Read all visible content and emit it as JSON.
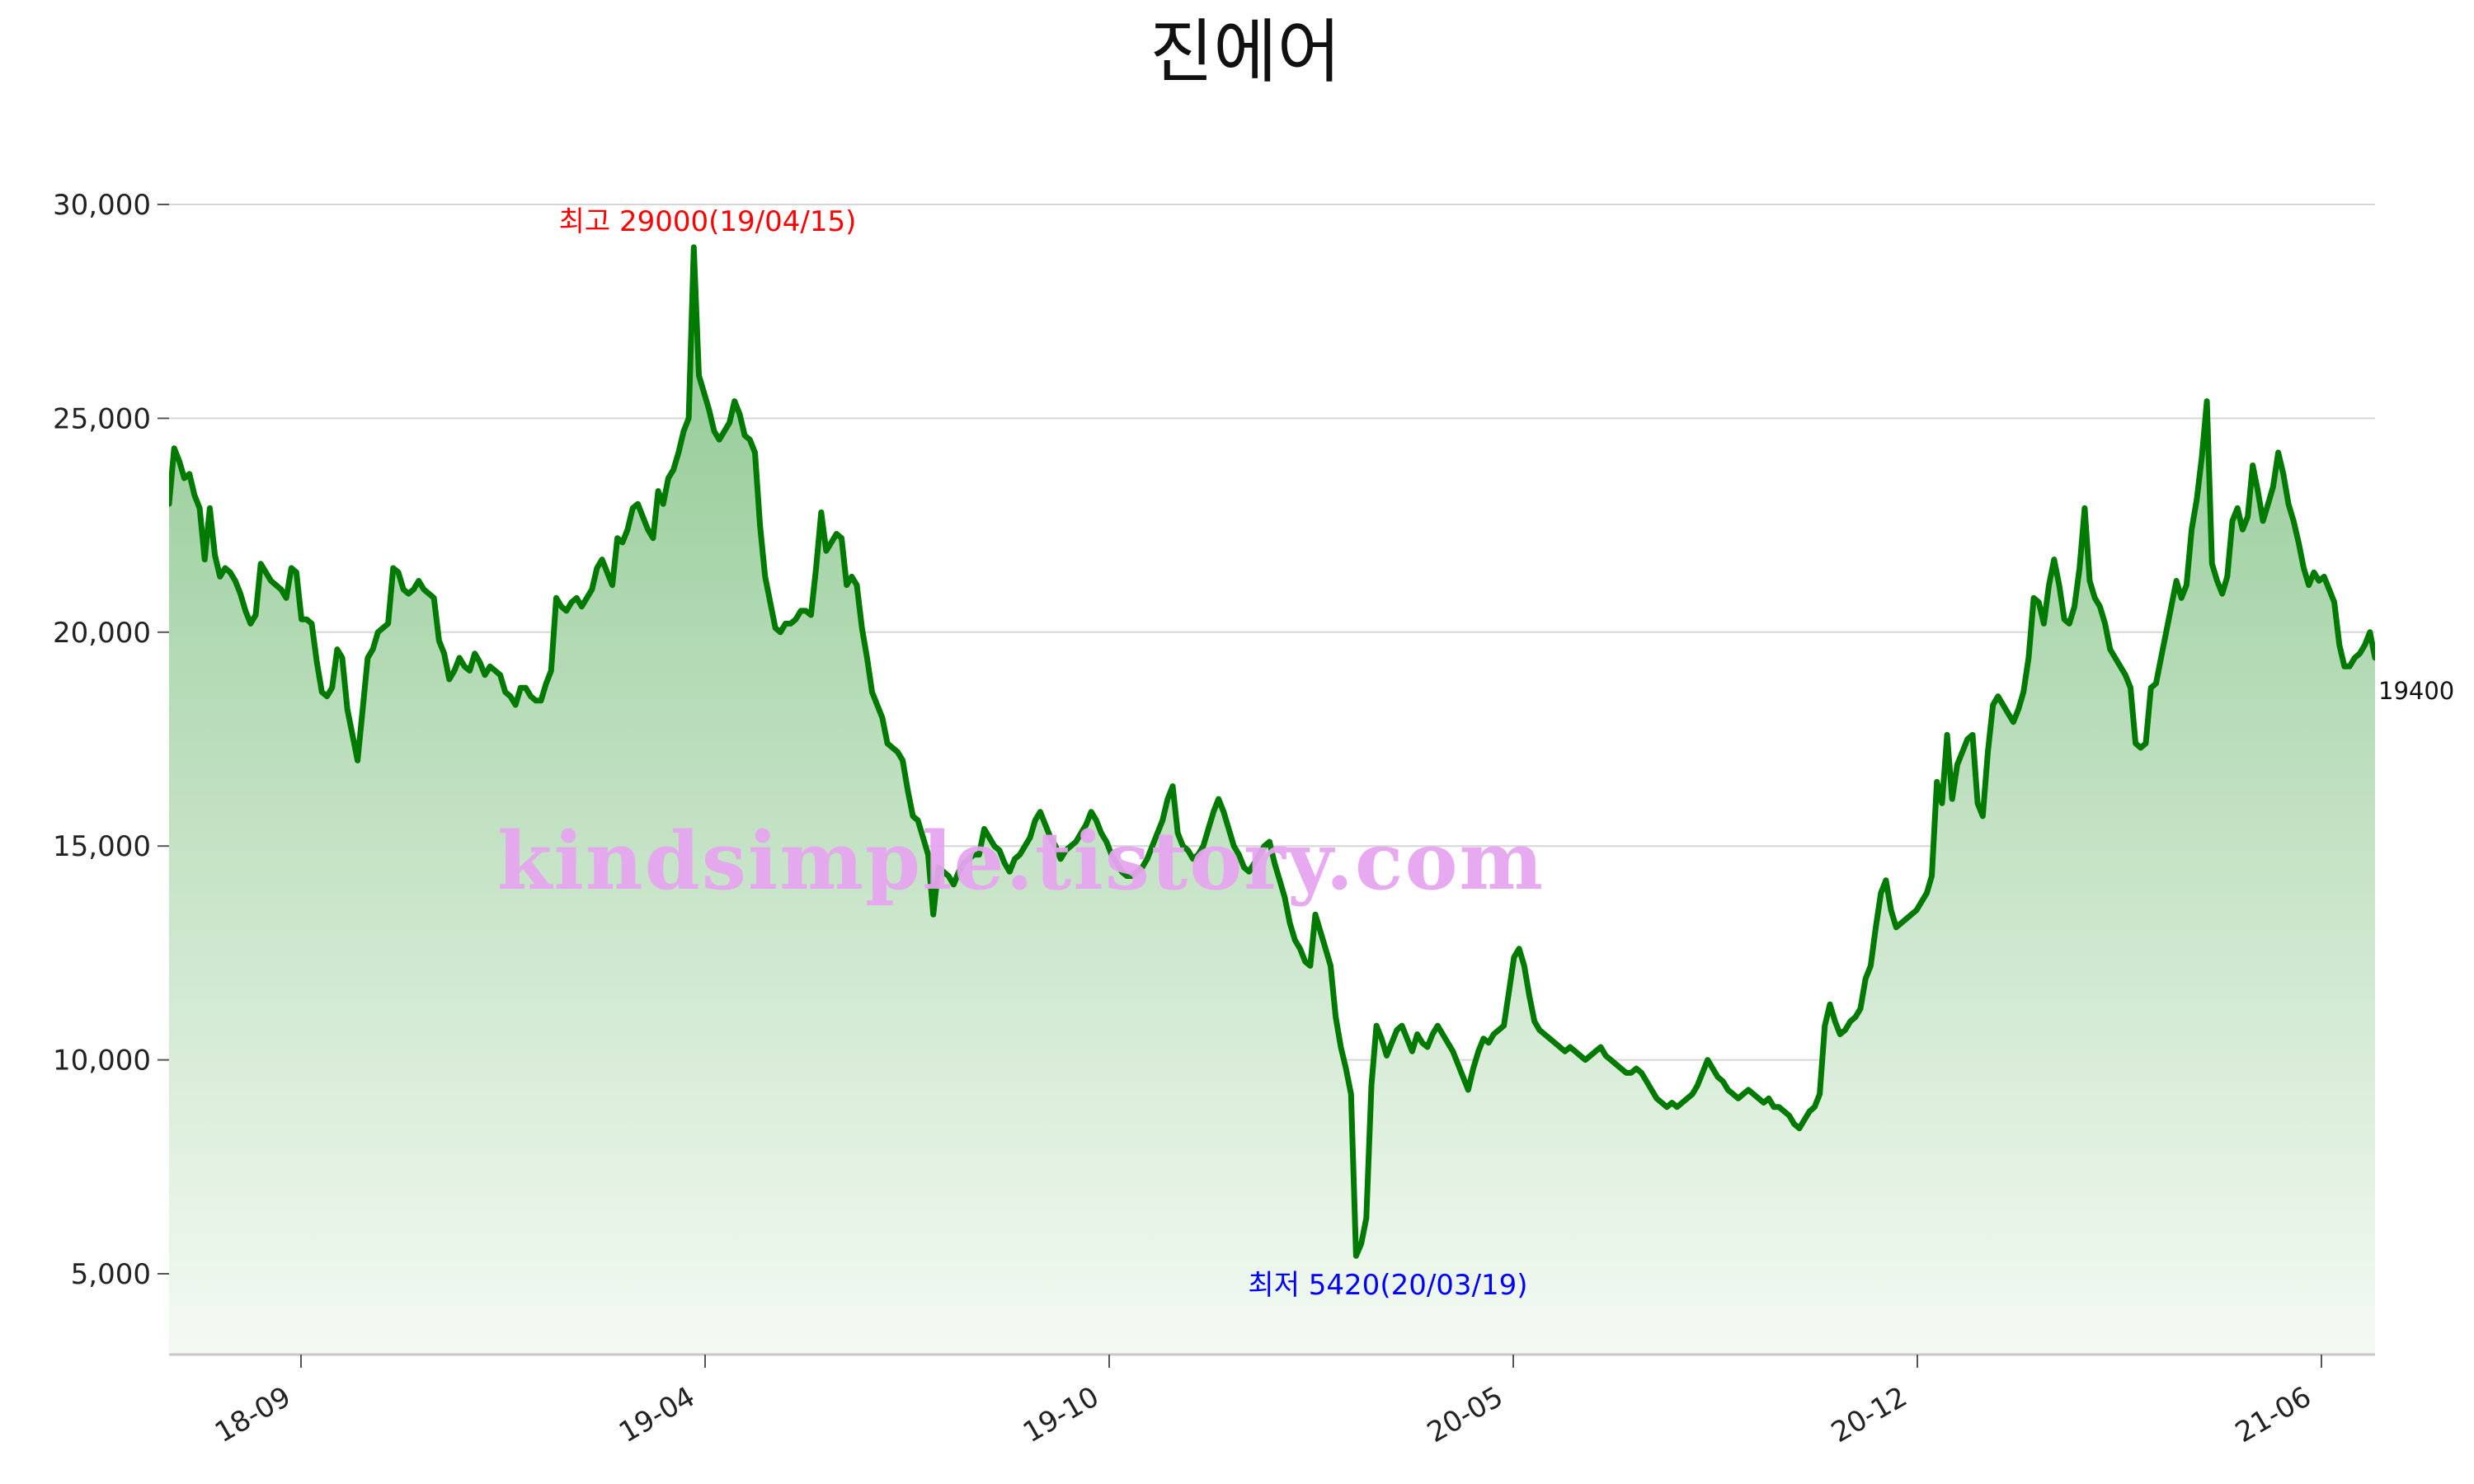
{
  "chart_data": {
    "type": "area",
    "title": "진에어",
    "xlabel": "",
    "ylabel": "",
    "ylim": [
      3000,
      30000
    ],
    "yticks": [
      5000,
      10000,
      15000,
      20000,
      25000,
      30000
    ],
    "ytick_labels": [
      "5,000",
      "10,000",
      "15,000",
      "20,000",
      "25,000",
      "30,000"
    ],
    "xticks": [
      "18-09",
      "19-04",
      "19-10",
      "20-05",
      "20-12",
      "21-06"
    ],
    "grid": true,
    "legend": "none",
    "x_start": "2018-07",
    "x_end": "2021-07",
    "line_color": "#007a00",
    "fill_color_top": "#8cc78f",
    "fill_color_bottom": "#f4faf3",
    "series": [
      {
        "values": [
          23000,
          24300,
          24000,
          23600,
          23700,
          23200,
          22900,
          21700,
          22900,
          21800,
          21300,
          21500,
          21400,
          21200,
          20900,
          20500,
          20200,
          20400,
          21600,
          21400,
          21200,
          21100,
          21000,
          20800,
          21500,
          21400,
          20300,
          20300,
          20200,
          19300,
          18600,
          18500,
          18700,
          19600,
          19400,
          18200,
          17600,
          17000,
          18200,
          19400,
          19600,
          20000,
          20100,
          20200,
          21500,
          21400,
          21000,
          20900,
          21000,
          21200,
          21000,
          20900,
          20800,
          19800,
          19500,
          18900,
          19100,
          19400,
          19200,
          19100,
          19500,
          19300,
          19000,
          19200,
          19100,
          19000,
          18600,
          18500,
          18300,
          18700,
          18700,
          18500,
          18400,
          18400,
          18800,
          19100,
          20800,
          20600,
          20500,
          20700,
          20800,
          20600,
          20800,
          21000,
          21500,
          21700,
          21400,
          21100,
          22200,
          22100,
          22400,
          22900,
          23000,
          22700,
          22400,
          22200,
          23300,
          23000,
          23600,
          23800,
          24200,
          24700,
          25000,
          29000,
          26000,
          25600,
          25200,
          24700,
          24500,
          24700,
          24900,
          25400,
          25100,
          24600,
          24500,
          24200,
          22500,
          21300,
          20700,
          20100,
          20000,
          20200,
          20200,
          20300,
          20500,
          20500,
          20400,
          21500,
          22800,
          21900,
          22100,
          22300,
          22200,
          21100,
          21300,
          21100,
          20100,
          19400,
          18600,
          18300,
          18000,
          17400,
          17300,
          17200,
          17000,
          16300,
          15700,
          15600,
          15200,
          14800,
          13400,
          14500,
          14400,
          14300,
          14100,
          14400,
          14600,
          14700,
          14800,
          14800,
          15400,
          15200,
          15000,
          14900,
          14600,
          14400,
          14700,
          14800,
          15000,
          15200,
          15600,
          15800,
          15500,
          15200,
          15000,
          14700,
          14900,
          15000,
          15100,
          15300,
          15500,
          15800,
          15600,
          15300,
          15100,
          14800,
          14600,
          14400,
          14300,
          14300,
          14400,
          14500,
          14700,
          15000,
          15300,
          15600,
          16100,
          16400,
          15300,
          15000,
          14900,
          14700,
          14800,
          15000,
          15400,
          15800,
          16100,
          15800,
          15400,
          15000,
          14800,
          14500,
          14400,
          14600,
          14800,
          15000,
          15100,
          14600,
          14200,
          13800,
          13200,
          12800,
          12600,
          12300,
          12200,
          13400,
          13000,
          12600,
          12200,
          11000,
          10300,
          9800,
          9200,
          5420,
          5700,
          6300,
          9400,
          10800,
          10500,
          10100,
          10400,
          10700,
          10800,
          10500,
          10200,
          10600,
          10400,
          10300,
          10600,
          10800,
          10600,
          10400,
          10200,
          9900,
          9600,
          9300,
          9800,
          10200,
          10500,
          10400,
          10600,
          10700,
          10800,
          11600,
          12400,
          12600,
          12200,
          11500,
          10900,
          10700,
          10600,
          10500,
          10400,
          10300,
          10200,
          10300,
          10200,
          10100,
          10000,
          10100,
          10200,
          10300,
          10100,
          10000,
          9900,
          9800,
          9700,
          9700,
          9800,
          9700,
          9500,
          9300,
          9100,
          9000,
          8900,
          9000,
          8900,
          9000,
          9100,
          9200,
          9400,
          9700,
          10000,
          9800,
          9600,
          9500,
          9300,
          9200,
          9100,
          9200,
          9300,
          9200,
          9100,
          9000,
          9100,
          8900,
          8900,
          8800,
          8700,
          8500,
          8400,
          8600,
          8800,
          8900,
          9200,
          10800,
          11300,
          10900,
          10600,
          10700,
          10900,
          11000,
          11200,
          11900,
          12200,
          13100,
          13900,
          14200,
          13500,
          13100,
          13200,
          13300,
          13400,
          13500,
          13700,
          13900,
          14300,
          16500,
          16000,
          17600,
          16100,
          16900,
          17200,
          17500,
          17600,
          16000,
          15700,
          17200,
          18300,
          18500,
          18300,
          18100,
          17900,
          18200,
          18600,
          19400,
          20800,
          20700,
          20200,
          21100,
          21700,
          21100,
          20300,
          20200,
          20600,
          21500,
          22900,
          21200,
          20800,
          20600,
          20200,
          19600,
          19400,
          19200,
          19000,
          18700,
          17400,
          17300,
          17400,
          18700,
          18800,
          19400,
          20000,
          20600,
          21200,
          20800,
          21100,
          22400,
          23100,
          24100,
          25400,
          21600,
          21200,
          20900,
          21300,
          22600,
          22900,
          22400,
          22700,
          23900,
          23300,
          22600,
          23000,
          23400,
          24200,
          23700,
          23000,
          22600,
          22100,
          21500,
          21100,
          21400,
          21200,
          21300,
          21000,
          20700,
          19700,
          19200,
          19200,
          19400,
          19500,
          19700,
          20000,
          19400
        ]
      }
    ],
    "annotations": [
      {
        "text": "최고 29000(19/04/15)",
        "value": 29000,
        "color": "#ff0000"
      },
      {
        "text": "최저 5420(20/03/19)",
        "value": 5420,
        "color": "#0000ff"
      },
      {
        "text": "19400",
        "value": 19400,
        "color": "#111111"
      }
    ],
    "watermark": {
      "text": "kindsimple.tistory.com",
      "color": "#e6a4ee"
    }
  }
}
